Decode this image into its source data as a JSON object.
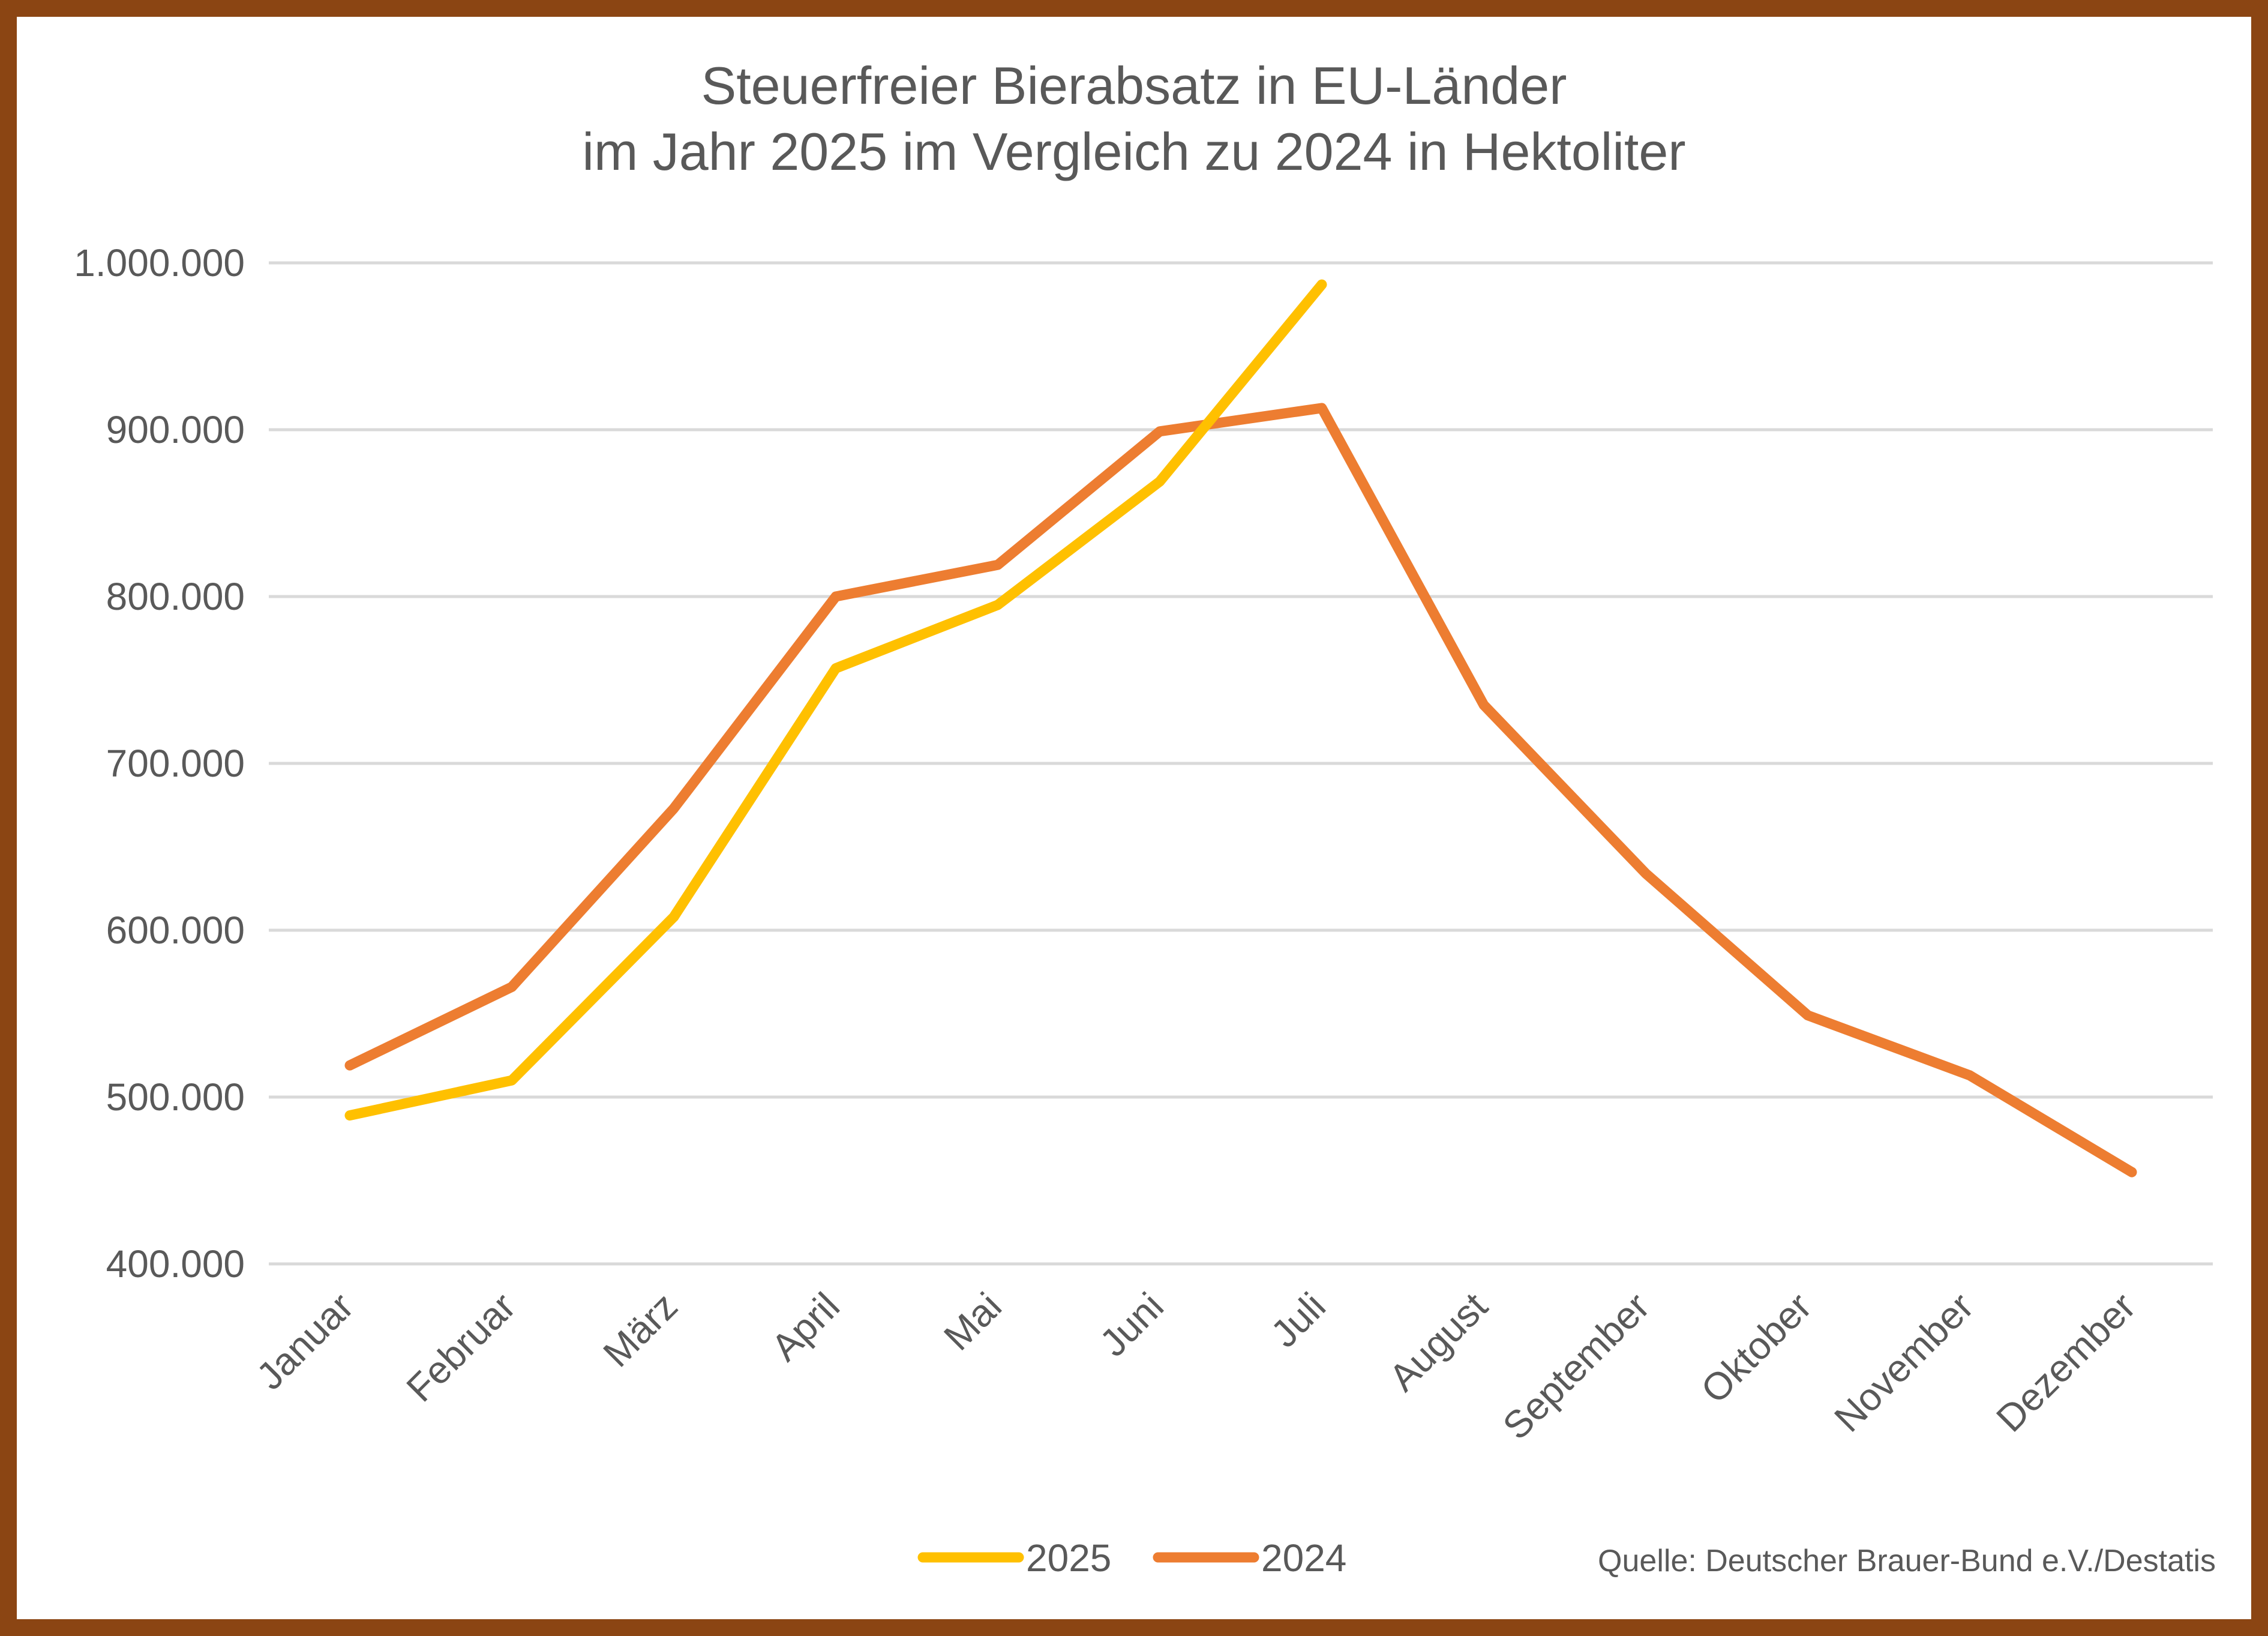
{
  "chart_data": {
    "type": "line",
    "title_lines": [
      "Steuerfreier Bierabsatz in EU-Länder",
      "im Jahr 2025 im Vergleich zu 2024 in Hektoliter"
    ],
    "categories": [
      "Januar",
      "Februar",
      "März",
      "April",
      "Mai",
      "Juni",
      "Juli",
      "August",
      "September",
      "Oktober",
      "November",
      "Dezember"
    ],
    "series": [
      {
        "name": "2025",
        "color": "#FFC000",
        "values": [
          489000,
          510000,
          608000,
          757000,
          795000,
          869000,
          987000,
          null,
          null,
          null,
          null,
          null
        ]
      },
      {
        "name": "2024",
        "color": "#ED7D31",
        "values": [
          519000,
          566000,
          673000,
          800000,
          819000,
          899000,
          913000,
          735000,
          634000,
          549000,
          513000,
          455000
        ]
      }
    ],
    "ylim": [
      400000,
      1000000
    ],
    "y_ticks": [
      400000,
      500000,
      600000,
      700000,
      800000,
      900000,
      1000000
    ],
    "y_tick_labels": [
      "400.000",
      "500.000",
      "600.000",
      "700.000",
      "800.000",
      "900.000",
      "1.000.000"
    ],
    "grid": true,
    "legend": "bottom",
    "source": "Quelle: Deutscher Brauer-Bund e.V./Destatis"
  },
  "colors": {
    "frame": "#8B4513",
    "grid": "#D9D9D9",
    "text": "#595959"
  }
}
